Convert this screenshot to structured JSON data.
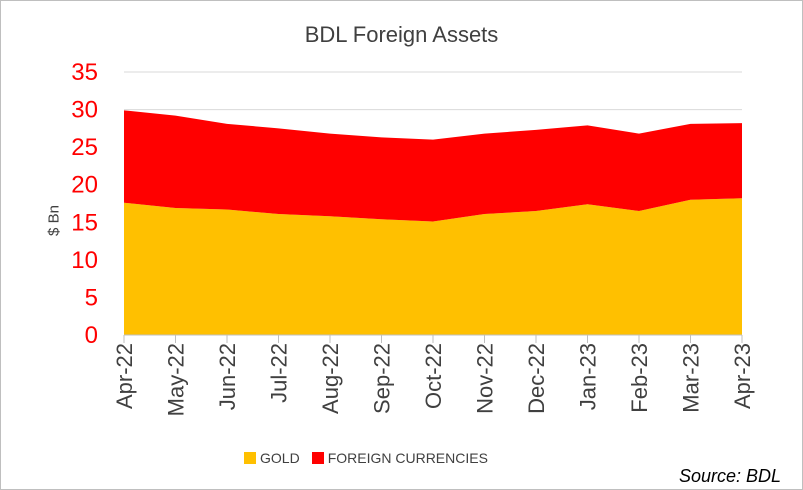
{
  "chart_data": {
    "type": "area",
    "stacked": true,
    "title": "BDL Foreign Assets",
    "ylabel": "$ Bn",
    "xlabel": "",
    "ylim": [
      0,
      35
    ],
    "yticks": [
      0,
      5,
      10,
      15,
      20,
      25,
      30,
      35
    ],
    "grid": true,
    "legend_position": "bottom",
    "categories": [
      "Apr-22",
      "May-22",
      "Jun-22",
      "Jul-22",
      "Aug-22",
      "Sep-22",
      "Oct-22",
      "Nov-22",
      "Dec-22",
      "Jan-23",
      "Feb-23",
      "Mar-23",
      "Apr-23"
    ],
    "series": [
      {
        "name": "GOLD",
        "color": "#FFC000",
        "values": [
          17.6,
          16.9,
          16.7,
          16.1,
          15.8,
          15.4,
          15.1,
          16.1,
          16.5,
          17.4,
          16.5,
          18.0,
          18.2
        ]
      },
      {
        "name": "FOREIGN CURRENCIES",
        "color": "#FF0000",
        "values": [
          12.3,
          12.3,
          11.4,
          11.4,
          11.0,
          10.9,
          10.9,
          10.7,
          10.8,
          10.5,
          10.3,
          10.1,
          10.0
        ]
      }
    ],
    "tick_label_color": "#FF0000",
    "source": "Source: BDL"
  }
}
